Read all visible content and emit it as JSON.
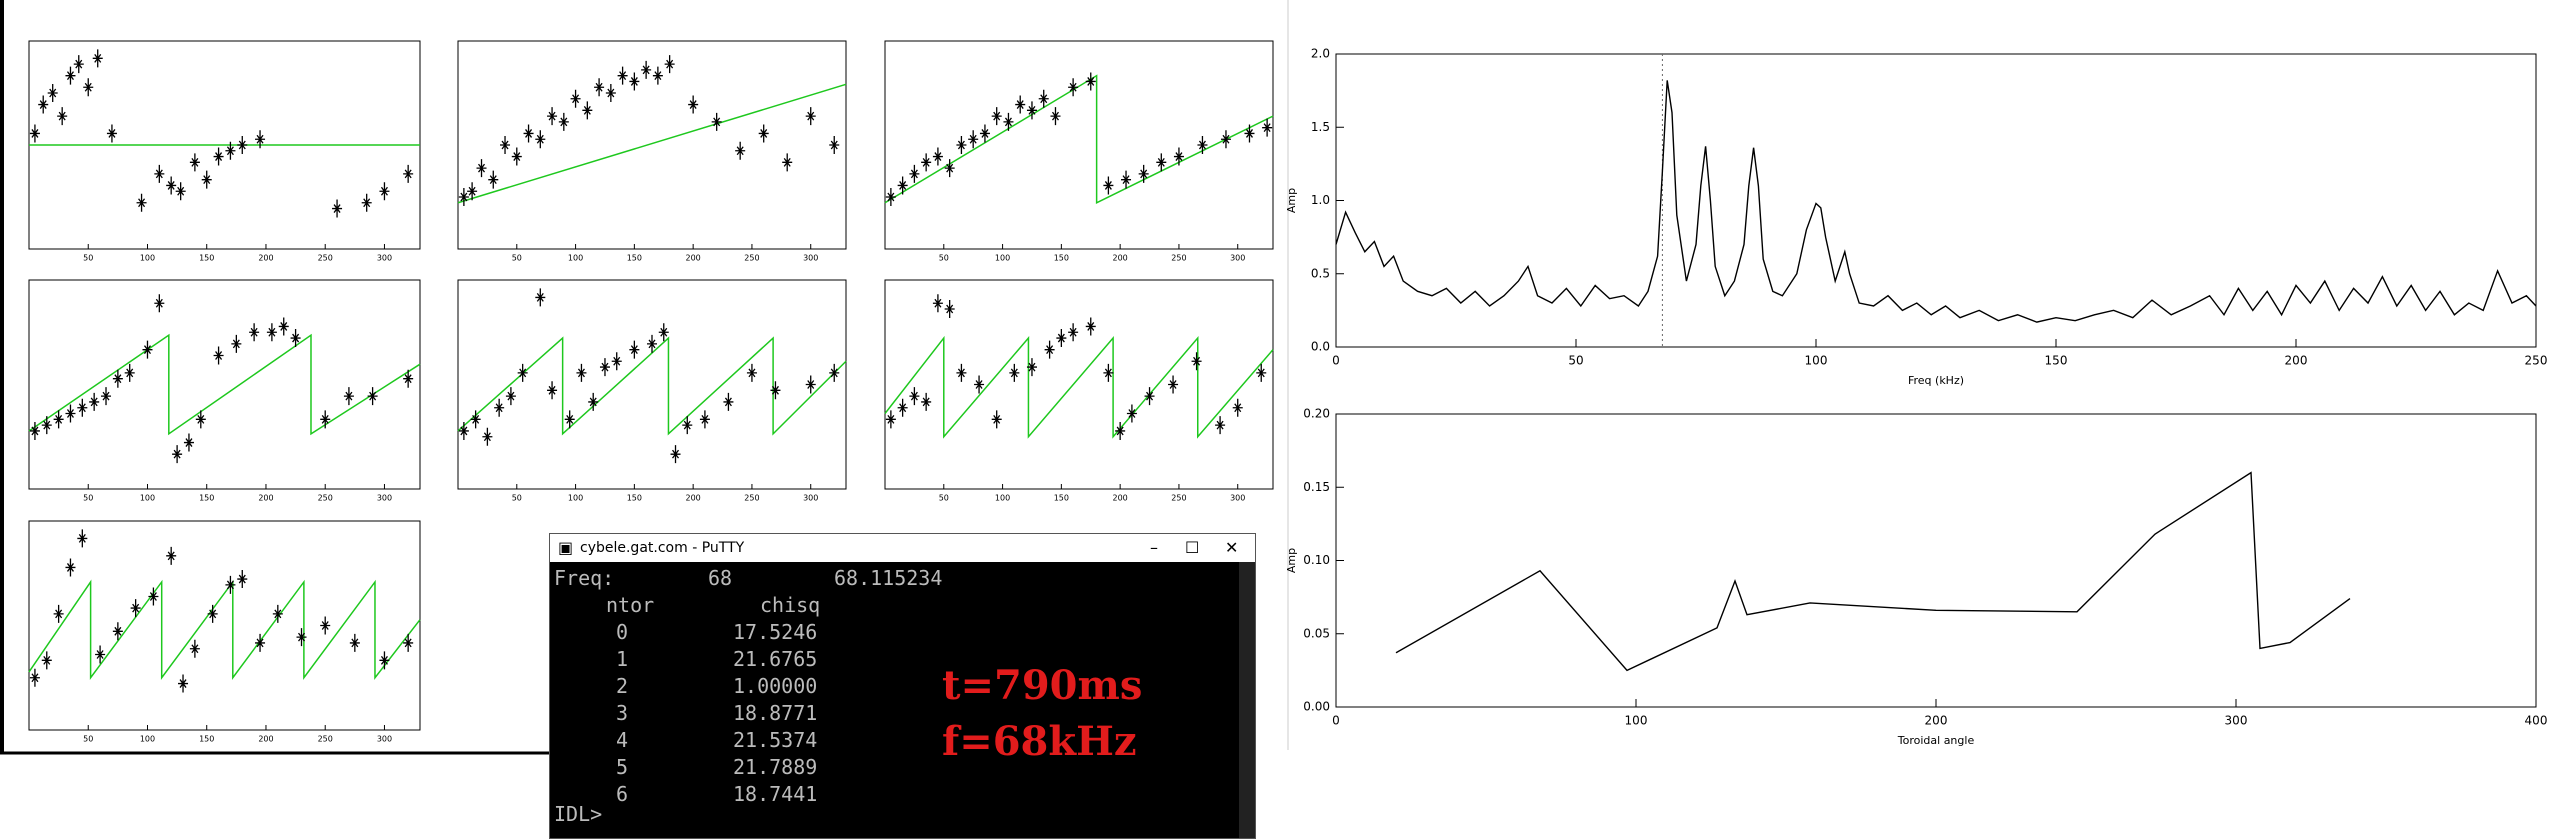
{
  "chart_data": [
    {
      "type": "scatter",
      "xlim": [
        0,
        330
      ],
      "ylim": [
        0,
        360
      ],
      "xticks": [
        50,
        100,
        150,
        200,
        250,
        300
      ],
      "color": "#000000",
      "fit_color": "#1ec81e",
      "x": [
        5,
        12,
        20,
        28,
        35,
        42,
        50,
        58,
        70,
        95,
        110,
        120,
        128,
        140,
        150,
        160,
        170,
        180,
        195,
        260,
        285,
        300,
        320
      ],
      "values": [
        200,
        250,
        270,
        230,
        300,
        320,
        280,
        330,
        200,
        80,
        130,
        110,
        100,
        150,
        120,
        160,
        170,
        180,
        190,
        70,
        80,
        100,
        130
      ],
      "fit_x": [
        0,
        330
      ],
      "fit_values": [
        180,
        180
      ]
    },
    {
      "type": "scatter",
      "xlim": [
        0,
        330
      ],
      "ylim": [
        0,
        360
      ],
      "xticks": [
        50,
        100,
        150,
        200,
        250,
        300
      ],
      "color": "#000000",
      "fit_color": "#1ec81e",
      "x": [
        5,
        12,
        20,
        30,
        40,
        50,
        60,
        70,
        80,
        90,
        100,
        110,
        120,
        130,
        140,
        150,
        160,
        170,
        180,
        200,
        220,
        240,
        260,
        280,
        300,
        320
      ],
      "values": [
        90,
        100,
        140,
        120,
        180,
        160,
        200,
        190,
        230,
        220,
        260,
        240,
        280,
        270,
        300,
        290,
        310,
        300,
        320,
        250,
        220,
        170,
        200,
        150,
        230,
        180
      ],
      "fit_x": [
        0,
        330
      ],
      "fit_values": [
        80,
        285
      ]
    },
    {
      "type": "scatter",
      "xlim": [
        0,
        330
      ],
      "ylim": [
        0,
        360
      ],
      "xticks": [
        50,
        100,
        150,
        200,
        250,
        300
      ],
      "color": "#000000",
      "fit_color": "#1ec81e",
      "x": [
        5,
        15,
        25,
        35,
        45,
        55,
        65,
        75,
        85,
        95,
        105,
        115,
        125,
        135,
        145,
        160,
        175,
        190,
        205,
        220,
        235,
        250,
        270,
        290,
        310,
        325
      ],
      "values": [
        90,
        110,
        130,
        150,
        160,
        140,
        180,
        190,
        200,
        230,
        220,
        250,
        240,
        260,
        230,
        280,
        290,
        110,
        120,
        130,
        150,
        160,
        180,
        190,
        200,
        210
      ],
      "fit_x": [
        0,
        180,
        180,
        330
      ],
      "fit_values": [
        80,
        300,
        80,
        230
      ]
    },
    {
      "type": "scatter",
      "xlim": [
        0,
        330
      ],
      "ylim": [
        0,
        360
      ],
      "xticks": [
        50,
        100,
        150,
        200,
        250,
        300
      ],
      "color": "#000000",
      "fit_color": "#1ec81e",
      "x": [
        5,
        15,
        25,
        35,
        45,
        55,
        65,
        75,
        85,
        100,
        110,
        125,
        135,
        145,
        160,
        175,
        190,
        205,
        215,
        225,
        250,
        270,
        290,
        320
      ],
      "values": [
        100,
        110,
        120,
        130,
        140,
        150,
        160,
        190,
        200,
        240,
        320,
        60,
        80,
        120,
        230,
        250,
        270,
        270,
        280,
        260,
        120,
        160,
        160,
        190
      ],
      "fit_x": [
        0,
        118,
        118,
        238,
        238,
        330
      ],
      "fit_values": [
        100,
        265,
        95,
        265,
        95,
        215
      ]
    },
    {
      "type": "scatter",
      "xlim": [
        0,
        330
      ],
      "ylim": [
        0,
        360
      ],
      "xticks": [
        50,
        100,
        150,
        200,
        250,
        300
      ],
      "color": "#000000",
      "fit_color": "#1ec81e",
      "x": [
        5,
        15,
        25,
        35,
        45,
        55,
        70,
        80,
        95,
        105,
        115,
        125,
        135,
        150,
        165,
        175,
        185,
        195,
        210,
        230,
        250,
        270,
        300,
        320
      ],
      "values": [
        100,
        120,
        90,
        140,
        160,
        200,
        330,
        170,
        120,
        200,
        150,
        210,
        220,
        240,
        250,
        270,
        60,
        110,
        120,
        150,
        200,
        170,
        180,
        200
      ],
      "fit_x": [
        0,
        89,
        89,
        179,
        179,
        268,
        268,
        330
      ],
      "fit_values": [
        100,
        260,
        95,
        260,
        95,
        260,
        95,
        220
      ]
    },
    {
      "type": "scatter",
      "xlim": [
        0,
        330
      ],
      "ylim": [
        0,
        360
      ],
      "xticks": [
        50,
        100,
        150,
        200,
        250,
        300
      ],
      "color": "#000000",
      "fit_color": "#1ec81e",
      "x": [
        5,
        15,
        25,
        35,
        45,
        55,
        65,
        80,
        95,
        110,
        125,
        140,
        150,
        160,
        175,
        190,
        200,
        210,
        225,
        245,
        265,
        285,
        300,
        320
      ],
      "values": [
        120,
        140,
        160,
        150,
        320,
        310,
        200,
        180,
        120,
        200,
        210,
        240,
        260,
        270,
        280,
        200,
        100,
        130,
        160,
        180,
        220,
        110,
        140,
        200
      ],
      "fit_x": [
        0,
        50,
        50,
        122,
        122,
        194,
        194,
        266,
        266,
        330
      ],
      "fit_values": [
        130,
        260,
        90,
        260,
        90,
        260,
        90,
        260,
        90,
        240
      ]
    },
    {
      "type": "scatter",
      "xlim": [
        0,
        330
      ],
      "ylim": [
        0,
        360
      ],
      "xticks": [
        50,
        100,
        150,
        200,
        250,
        300
      ],
      "color": "#000000",
      "fit_color": "#1ec81e",
      "x": [
        5,
        15,
        25,
        35,
        45,
        60,
        75,
        90,
        105,
        120,
        130,
        140,
        155,
        170,
        180,
        195,
        210,
        230,
        250,
        275,
        300,
        320
      ],
      "values": [
        90,
        120,
        200,
        280,
        330,
        130,
        170,
        210,
        230,
        300,
        80,
        140,
        200,
        250,
        260,
        150,
        200,
        160,
        180,
        150,
        120,
        150
      ],
      "fit_x": [
        0,
        52,
        52,
        112,
        112,
        172,
        172,
        232,
        232,
        292,
        292,
        330
      ],
      "fit_values": [
        100,
        255,
        90,
        255,
        90,
        255,
        90,
        255,
        90,
        255,
        90,
        190
      ]
    },
    {
      "type": "line",
      "xlabel": "Freq (kHz)",
      "ylabel": "Amp",
      "color": "#000000",
      "marker_x": 68,
      "xlim": [
        0,
        250
      ],
      "ylim": [
        0,
        2
      ],
      "xticks": [
        0,
        50,
        100,
        150,
        200,
        250
      ],
      "yticks": [
        {
          "value": 0,
          "label": "0.0"
        },
        0.5,
        {
          "value": 1,
          "label": "1.0"
        },
        1.5,
        {
          "value": 2,
          "label": "2.0"
        }
      ],
      "x": [
        0,
        2,
        4,
        6,
        8,
        10,
        12,
        14,
        17,
        20,
        23,
        26,
        29,
        32,
        35,
        38,
        40,
        42,
        45,
        48,
        51,
        54,
        57,
        60,
        63,
        65,
        67,
        68,
        69,
        70,
        71,
        73,
        75,
        76,
        77,
        78,
        79,
        81,
        83,
        85,
        86,
        87,
        88,
        89,
        91,
        93,
        96,
        98,
        100,
        101,
        102,
        104,
        106,
        107,
        109,
        112,
        115,
        118,
        121,
        124,
        127,
        130,
        134,
        138,
        142,
        146,
        150,
        154,
        158,
        162,
        166,
        170,
        174,
        178,
        182,
        185,
        188,
        191,
        194,
        197,
        200,
        203,
        206,
        209,
        212,
        215,
        218,
        221,
        224,
        227,
        230,
        233,
        236,
        239,
        242,
        245,
        248,
        250
      ],
      "values": [
        0.7,
        0.92,
        0.78,
        0.65,
        0.72,
        0.55,
        0.62,
        0.45,
        0.38,
        0.35,
        0.4,
        0.3,
        0.38,
        0.28,
        0.35,
        0.45,
        0.55,
        0.35,
        0.3,
        0.4,
        0.28,
        0.42,
        0.33,
        0.35,
        0.28,
        0.38,
        0.62,
        1.2,
        1.82,
        1.6,
        0.9,
        0.45,
        0.7,
        1.1,
        1.37,
        1.0,
        0.55,
        0.35,
        0.45,
        0.7,
        1.1,
        1.36,
        1.1,
        0.6,
        0.38,
        0.35,
        0.5,
        0.8,
        0.98,
        0.95,
        0.75,
        0.45,
        0.65,
        0.5,
        0.3,
        0.28,
        0.35,
        0.25,
        0.3,
        0.22,
        0.28,
        0.2,
        0.25,
        0.18,
        0.22,
        0.17,
        0.2,
        0.18,
        0.22,
        0.25,
        0.2,
        0.32,
        0.22,
        0.28,
        0.35,
        0.22,
        0.4,
        0.25,
        0.38,
        0.22,
        0.42,
        0.3,
        0.45,
        0.25,
        0.4,
        0.3,
        0.48,
        0.28,
        0.42,
        0.25,
        0.38,
        0.22,
        0.3,
        0.25,
        0.52,
        0.3,
        0.35,
        0.28
      ]
    },
    {
      "type": "line",
      "xlabel": "Toroidal angle",
      "ylabel": "Amp",
      "color": "#000000",
      "xlim": [
        0,
        400
      ],
      "ylim": [
        0,
        0.2
      ],
      "xticks": [
        0,
        100,
        200,
        300,
        400
      ],
      "yticks": [
        {
          "value": 0,
          "label": "0.00"
        },
        0.05,
        {
          "value": 0.1,
          "label": "0.10"
        },
        0.15,
        {
          "value": 0.2,
          "label": "0.20"
        }
      ],
      "x": [
        20,
        68,
        97,
        127,
        133,
        137,
        158,
        200,
        247,
        273,
        305,
        308,
        318,
        338
      ],
      "values": [
        0.037,
        0.093,
        0.025,
        0.054,
        0.086,
        0.063,
        0.071,
        0.066,
        0.065,
        0.118,
        0.16,
        0.04,
        0.044,
        0.074
      ]
    }
  ],
  "terminal": {
    "title": "cybele.gat.com - PuTTY",
    "freq_label": "Freq:",
    "freq": 68,
    "freq_exact": "68.115234",
    "headers": [
      "ntor",
      "chisq"
    ],
    "ntor": [
      0,
      1,
      2,
      3,
      4,
      5,
      6
    ],
    "chisq": [
      "17.5246",
      "21.6765",
      "1.00000",
      "18.8771",
      "21.5374",
      "21.7889",
      "18.7441"
    ],
    "prompt": "IDL>"
  },
  "annotations": [
    "t=790ms",
    "f=68kHz"
  ]
}
